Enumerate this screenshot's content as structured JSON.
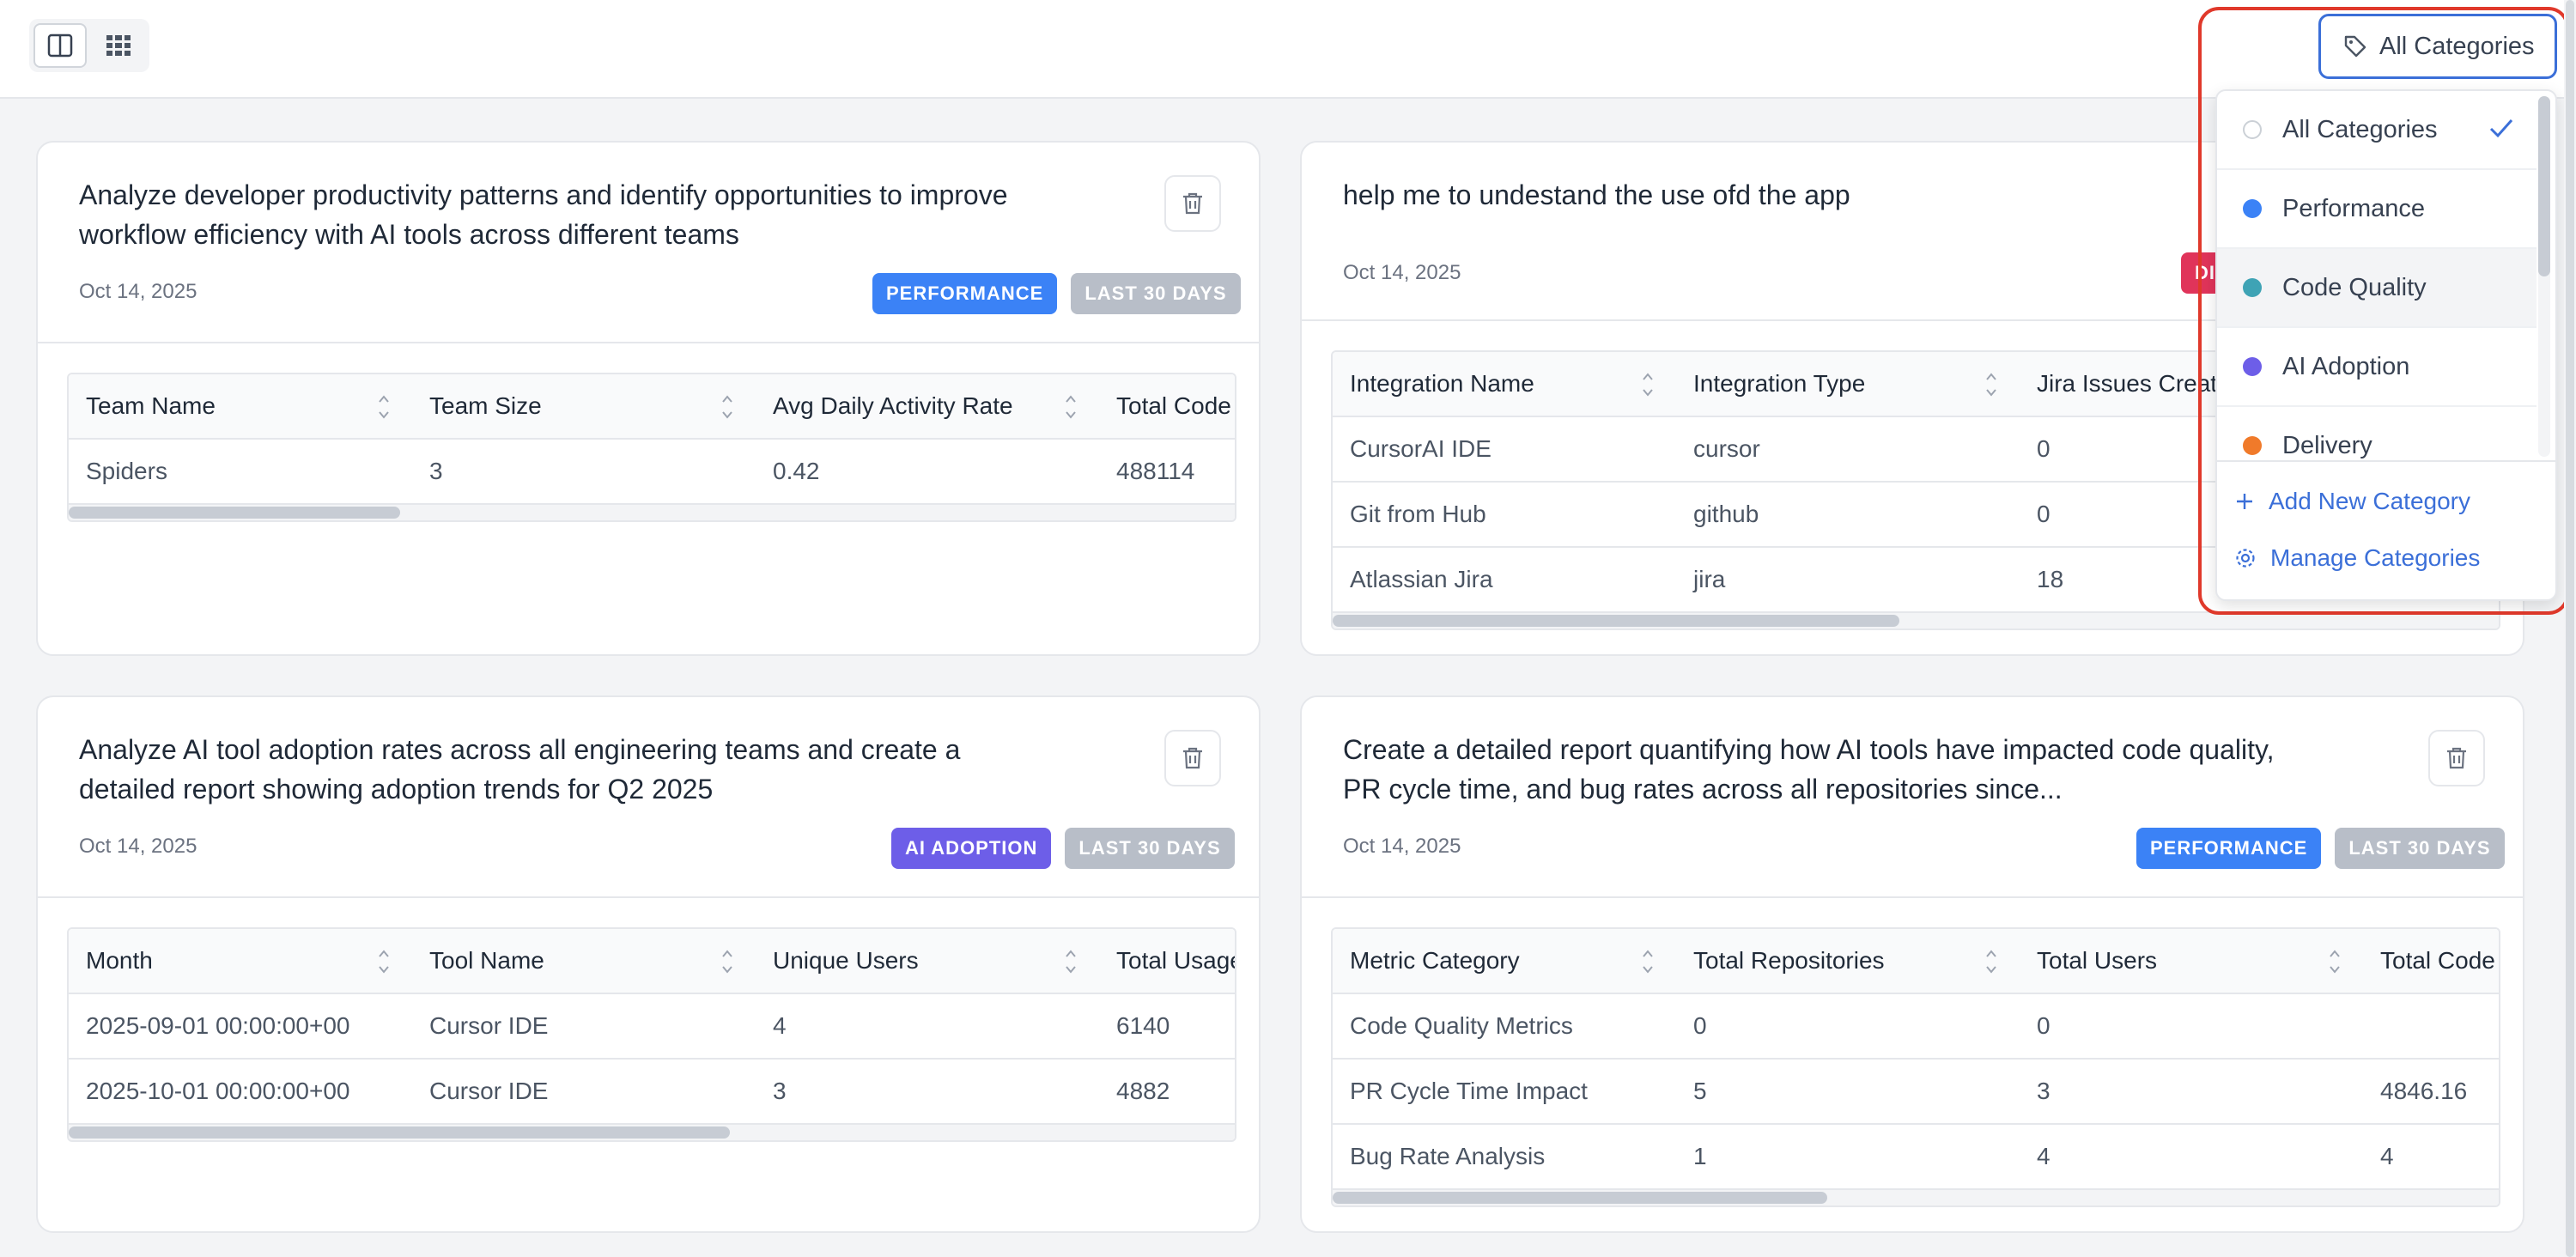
{
  "category_filter": {
    "label": "All Categories"
  },
  "dropdown": {
    "items": [
      {
        "label": "All Categories",
        "color": "",
        "selected": true
      },
      {
        "label": "Performance",
        "color": "#3b82f6"
      },
      {
        "label": "Code Quality",
        "color": "#3ea3b5"
      },
      {
        "label": "AI Adoption",
        "color": "#6d5ee8"
      },
      {
        "label": "Delivery",
        "color": "#f07a2a"
      }
    ],
    "add_label": "Add New Category",
    "manage_label": "Manage Categories"
  },
  "cards": [
    {
      "title": "Analyze developer productivity patterns and identify opportunities to improve workflow efficiency with AI tools across different teams",
      "date": "Oct 14, 2025",
      "badges": [
        "PERFORMANCE",
        "LAST 30 DAYS"
      ],
      "columns": [
        "Team Name",
        "Team Size",
        "Avg Daily Activity Rate",
        "Total Code"
      ],
      "rows": [
        [
          "Spiders",
          "3",
          "0.42",
          "488114"
        ]
      ]
    },
    {
      "title": "help me to undestand the use ofd the app",
      "date": "Oct 14, 2025",
      "badges": [
        "DI"
      ],
      "columns": [
        "Integration Name",
        "Integration Type",
        "Jira Issues Create"
      ],
      "rows": [
        [
          "CursorAI IDE",
          "cursor",
          "0"
        ],
        [
          "Git from Hub",
          "github",
          "0"
        ],
        [
          "Atlassian Jira",
          "jira",
          "18"
        ]
      ]
    },
    {
      "title": "Analyze AI tool adoption rates across all engineering teams and create a detailed report showing adoption trends for Q2 2025",
      "date": "Oct 14, 2025",
      "badges": [
        "AI ADOPTION",
        "LAST 30 DAYS"
      ],
      "columns": [
        "Month",
        "Tool Name",
        "Unique Users",
        "Total Usage"
      ],
      "rows": [
        [
          "2025-09-01 00:00:00+00",
          "Cursor IDE",
          "4",
          "6140"
        ],
        [
          "2025-10-01 00:00:00+00",
          "Cursor IDE",
          "3",
          "4882"
        ]
      ]
    },
    {
      "title": "Create a detailed report quantifying how AI tools have impacted code quality, PR cycle time, and bug rates across all repositories since...",
      "date": "Oct 14, 2025",
      "badges": [
        "PERFORMANCE",
        "LAST 30 DAYS"
      ],
      "columns": [
        "Metric Category",
        "Total Repositories",
        "Total Users",
        "Total Code"
      ],
      "rows": [
        [
          "Code Quality Metrics",
          "0",
          "0",
          ""
        ],
        [
          "PR Cycle Time Impact",
          "5",
          "3",
          "4846.16"
        ],
        [
          "Bug Rate Analysis",
          "1",
          "4",
          "4"
        ]
      ]
    }
  ]
}
